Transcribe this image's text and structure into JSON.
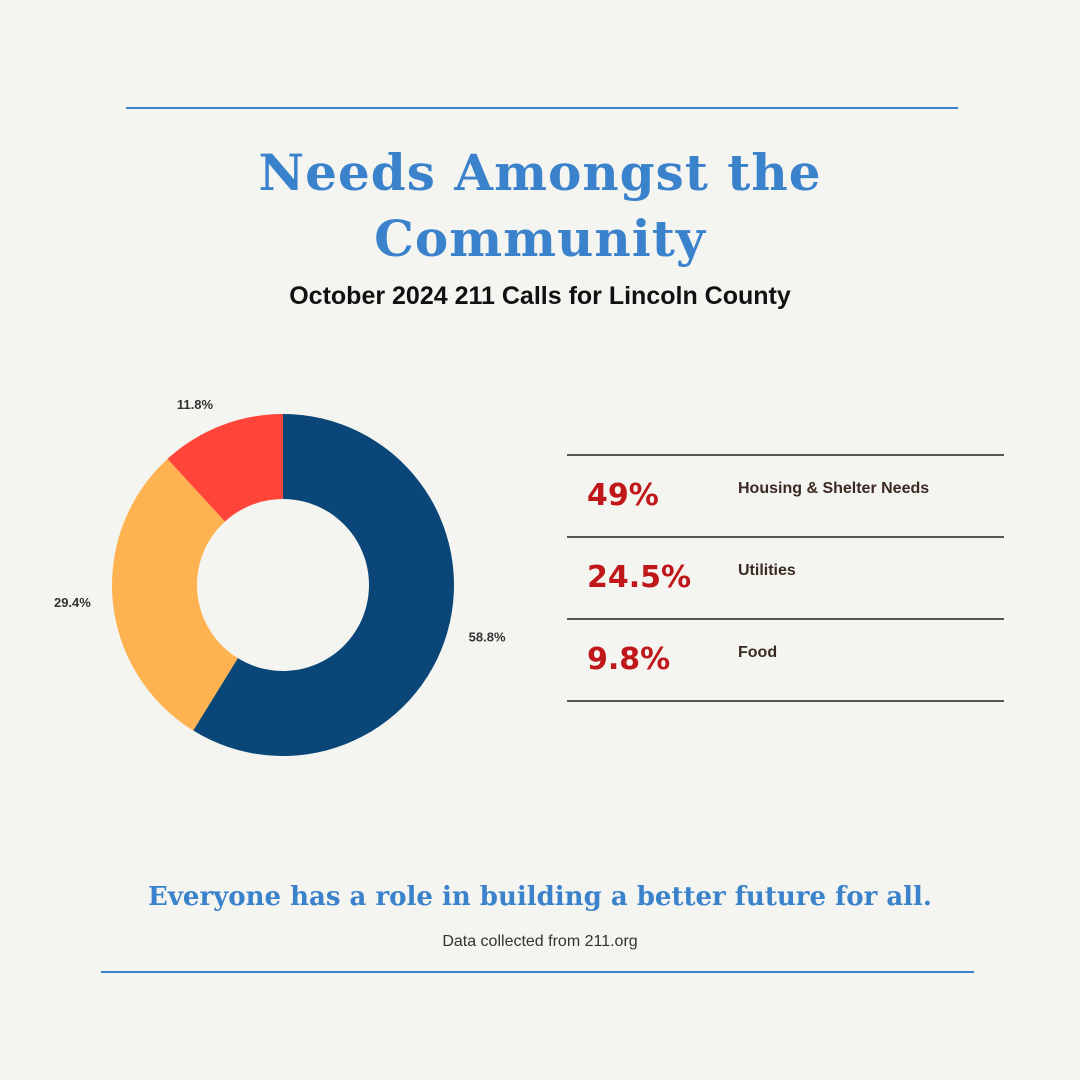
{
  "header": {
    "title": "Needs Amongst the Community",
    "subtitle": "October 2024 211 Calls for Lincoln County"
  },
  "chart_data": {
    "type": "pie",
    "donut": true,
    "categories": [
      "",
      "",
      ""
    ],
    "values": [
      58.8,
      29.4,
      11.8
    ],
    "labels": [
      "58.8%",
      "29.4%",
      "11.8%"
    ],
    "colors": [
      "#0a4778",
      "#ffb350",
      "#ff4539"
    ],
    "title": "",
    "legend": "none"
  },
  "stats": [
    {
      "value": "49%",
      "label": "Housing & Shelter Needs"
    },
    {
      "value": "24.5%",
      "label": "Utilities"
    },
    {
      "value": "9.8%",
      "label": "Food"
    }
  ],
  "colors": {
    "accent": "#3a82cc",
    "stat_value": "#c0171a",
    "background": "#f4f4f0"
  },
  "footer": {
    "tagline": "Everyone has a role in building a better future for all.",
    "source": "Data collected from 211.org"
  }
}
